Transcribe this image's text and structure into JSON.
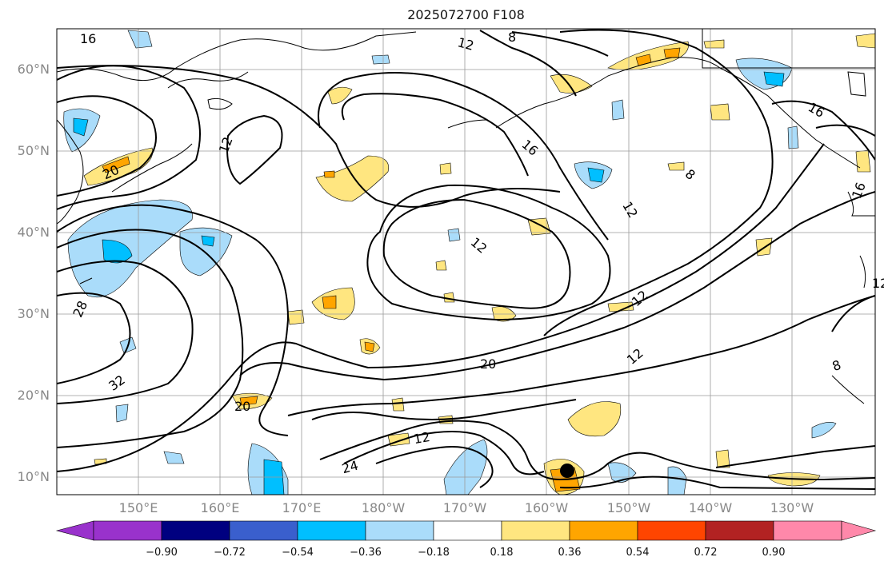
{
  "title": "2025072700 F108",
  "lat_labels": [
    "60°N",
    "50°N",
    "40°N",
    "30°N",
    "20°N",
    "10°N"
  ],
  "lon_labels": [
    "150°E",
    "160°E",
    "170°E",
    "180°W",
    "170°W",
    "160°W",
    "150°W",
    "140°W",
    "130°W"
  ],
  "contour_labels": [
    "16",
    "12",
    "8",
    "12",
    "20",
    "12",
    "16",
    "12",
    "12",
    "8",
    "16",
    "16",
    "28",
    "32",
    "20",
    "20",
    "12",
    "24",
    "12",
    "8",
    "12"
  ],
  "colorbar": {
    "ticks": [
      "−0.90",
      "−0.72",
      "−0.54",
      "−0.36",
      "−0.18",
      "0.18",
      "0.36",
      "0.54",
      "0.72",
      "0.90"
    ],
    "colors": [
      "#9932cc",
      "#000080",
      "#3a5fcd",
      "#00bfff",
      "#aadcfa",
      "#ffffff",
      "#ffe680",
      "#ffa500",
      "#ff4500",
      "#b22222",
      "#ff88aa"
    ]
  },
  "marker": "storm-position"
}
